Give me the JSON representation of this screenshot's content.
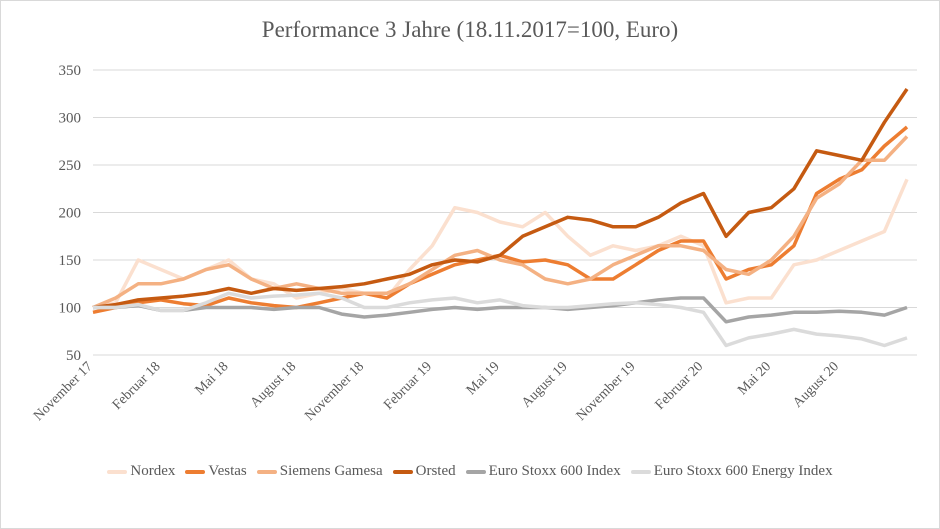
{
  "chart_data": {
    "type": "line",
    "title": "Performance 3 Jahre (18.11.2017=100, Euro)",
    "xlabel": "",
    "ylabel": "",
    "ylim": [
      50,
      350
    ],
    "yticks": [
      50,
      100,
      150,
      200,
      250,
      300,
      350
    ],
    "grid": true,
    "legend": "bottom",
    "x": [
      "2017-11",
      "2017-12",
      "2018-01",
      "2018-02",
      "2018-03",
      "2018-04",
      "2018-05",
      "2018-06",
      "2018-07",
      "2018-08",
      "2018-09",
      "2018-10",
      "2018-11",
      "2018-12",
      "2019-01",
      "2019-02",
      "2019-03",
      "2019-04",
      "2019-05",
      "2019-06",
      "2019-07",
      "2019-08",
      "2019-09",
      "2019-10",
      "2019-11",
      "2019-12",
      "2020-01",
      "2020-02",
      "2020-03",
      "2020-04",
      "2020-05",
      "2020-06",
      "2020-07",
      "2020-08",
      "2020-09",
      "2020-10",
      "2020-11"
    ],
    "xtick_labels": [
      {
        "index": 0,
        "label": "November 17"
      },
      {
        "index": 3,
        "label": "Februar 18"
      },
      {
        "index": 6,
        "label": "Mai 18"
      },
      {
        "index": 9,
        "label": "August 18"
      },
      {
        "index": 12,
        "label": "November 18"
      },
      {
        "index": 15,
        "label": "Februar 19"
      },
      {
        "index": 18,
        "label": "Mai 19"
      },
      {
        "index": 21,
        "label": "August 19"
      },
      {
        "index": 24,
        "label": "November 19"
      },
      {
        "index": 27,
        "label": "Februar 20"
      },
      {
        "index": 30,
        "label": "Mai 20"
      },
      {
        "index": 33,
        "label": "August 20"
      }
    ],
    "series": [
      {
        "name": "Nordex",
        "color": "#fbe0cf",
        "values": [
          100,
          105,
          150,
          140,
          130,
          140,
          150,
          130,
          125,
          110,
          115,
          120,
          115,
          110,
          140,
          165,
          205,
          200,
          190,
          185,
          200,
          175,
          155,
          165,
          160,
          165,
          175,
          165,
          105,
          110,
          110,
          145,
          150,
          160,
          170,
          180,
          235
        ]
      },
      {
        "name": "Vestas",
        "color": "#ed7d31",
        "values": [
          95,
          100,
          105,
          108,
          104,
          102,
          110,
          105,
          102,
          100,
          105,
          110,
          115,
          110,
          125,
          135,
          145,
          150,
          155,
          148,
          150,
          145,
          130,
          130,
          145,
          160,
          170,
          170,
          130,
          140,
          145,
          165,
          220,
          235,
          245,
          270,
          290
        ]
      },
      {
        "name": "Siemens Gamesa",
        "color": "#f4b183",
        "values": [
          100,
          110,
          125,
          125,
          130,
          140,
          145,
          130,
          120,
          125,
          120,
          115,
          115,
          115,
          125,
          140,
          155,
          160,
          150,
          145,
          130,
          125,
          130,
          145,
          155,
          165,
          165,
          160,
          140,
          135,
          150,
          175,
          215,
          230,
          255,
          255,
          280
        ]
      },
      {
        "name": "Orsted",
        "color": "#c55a11",
        "values": [
          100,
          103,
          108,
          110,
          112,
          115,
          120,
          115,
          120,
          118,
          120,
          122,
          125,
          130,
          135,
          145,
          150,
          148,
          155,
          175,
          185,
          195,
          192,
          185,
          185,
          195,
          210,
          220,
          175,
          200,
          205,
          225,
          265,
          260,
          255,
          295,
          330
        ]
      },
      {
        "name": "Euro Stoxx 600 Index",
        "color": "#a5a5a5",
        "values": [
          100,
          100,
          102,
          97,
          97,
          100,
          100,
          100,
          98,
          100,
          100,
          93,
          90,
          92,
          95,
          98,
          100,
          98,
          100,
          100,
          100,
          98,
          100,
          102,
          105,
          108,
          110,
          110,
          85,
          90,
          92,
          95,
          95,
          96,
          95,
          92,
          100
        ]
      },
      {
        "name": "Euro Stoxx 600 Energy Index",
        "color": "#dbdbdb",
        "values": [
          100,
          100,
          103,
          97,
          97,
          105,
          115,
          110,
          112,
          113,
          115,
          110,
          100,
          100,
          105,
          108,
          110,
          105,
          108,
          102,
          100,
          100,
          102,
          104,
          105,
          103,
          100,
          95,
          60,
          68,
          72,
          77,
          72,
          70,
          67,
          60,
          68
        ]
      }
    ]
  }
}
